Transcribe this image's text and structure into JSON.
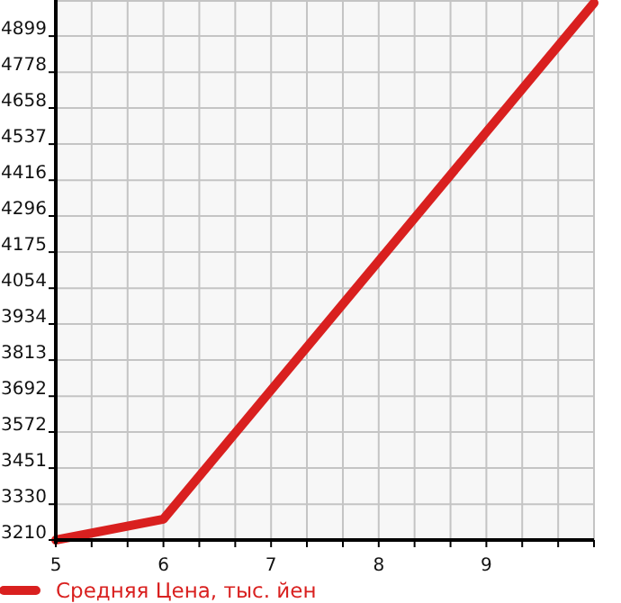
{
  "chart_data": {
    "type": "line",
    "x": [
      5,
      6,
      10
    ],
    "series": [
      {
        "name": "Средняя Цена, тыс. йен",
        "color": "#d9201f",
        "values": [
          3210,
          3280,
          5010
        ]
      }
    ],
    "xlim": [
      5,
      10
    ],
    "xticks": [
      5,
      {
        "value": 5.333,
        "label": null
      },
      {
        "value": 5.667,
        "label": null
      },
      6,
      {
        "value": 6.333,
        "label": null
      },
      {
        "value": 6.667,
        "label": null
      },
      7,
      {
        "value": 7.333,
        "label": null
      },
      {
        "value": 7.667,
        "label": null
      },
      8,
      {
        "value": 8.333,
        "label": null
      },
      {
        "value": 8.667,
        "label": null
      },
      9,
      {
        "value": 9.333,
        "label": null
      },
      {
        "value": 9.667,
        "label": null
      },
      {
        "value": 10,
        "label": null
      }
    ],
    "ylim": [
      3210,
      5020
    ],
    "yticks": [
      3210,
      3330,
      3451,
      3572,
      3692,
      3813,
      3934,
      4054,
      4175,
      4296,
      4416,
      4537,
      4658,
      4778,
      4899
    ],
    "grid": true,
    "legend": "bottom left",
    "marker": "none",
    "line_style": "solid"
  }
}
